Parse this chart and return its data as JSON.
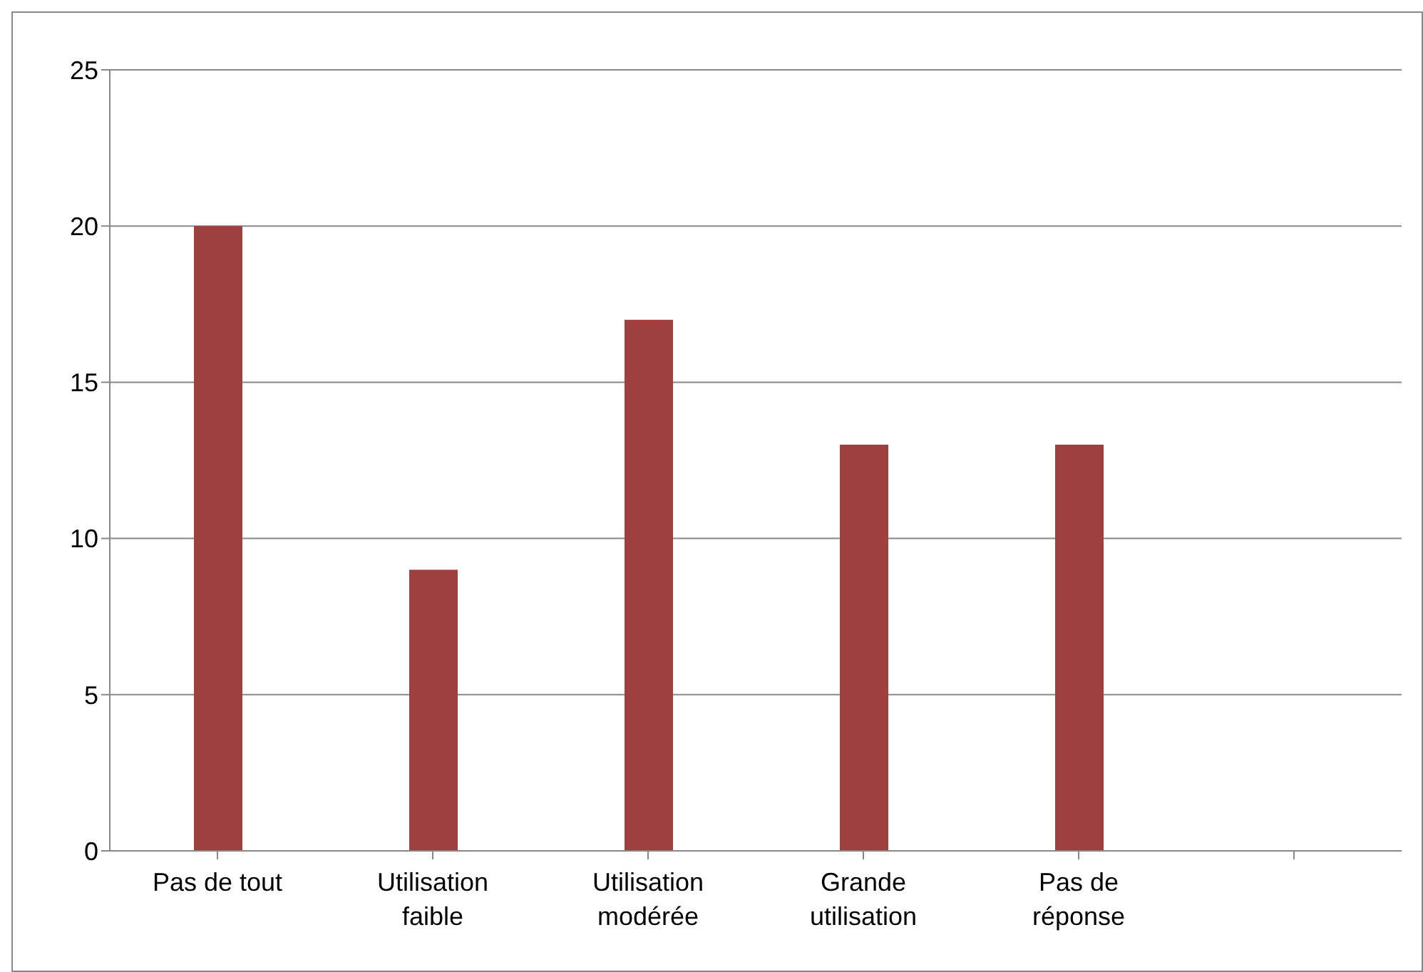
{
  "chart_data": {
    "type": "bar",
    "categories": [
      "Pas de tout",
      "Utilisation faible",
      "Utilisation modérée",
      "Grande utilisation",
      "Pas de réponse",
      null
    ],
    "values": [
      20,
      9,
      17,
      13,
      13,
      null
    ],
    "color": "#9e413e",
    "ylim": [
      0,
      25
    ],
    "yticks": [
      0,
      5,
      10,
      15,
      20,
      25
    ],
    "grid": "y"
  }
}
